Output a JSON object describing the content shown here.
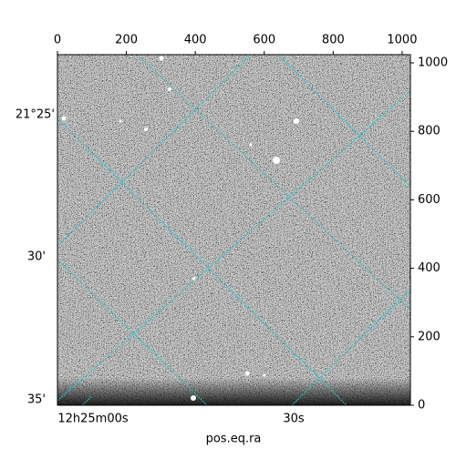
{
  "chart_data": {
    "type": "image",
    "xlabel": "pos.eq.ra",
    "xlim": [
      0,
      1024
    ],
    "ylim": [
      0,
      1024
    ],
    "xticks": [
      0,
      200,
      400,
      600,
      800,
      1000
    ],
    "yticks": [
      0,
      200,
      400,
      600,
      800,
      1000
    ],
    "dec_labels": [
      "21°25'",
      "30'",
      "35'"
    ],
    "ra_labels": [
      "12h25m00s",
      "30s"
    ]
  }
}
